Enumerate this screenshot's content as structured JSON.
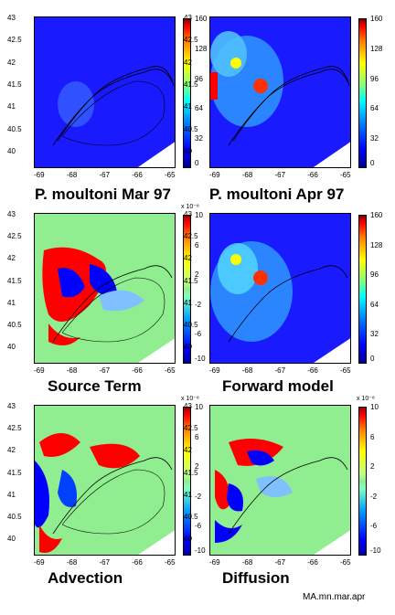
{
  "panels": [
    {
      "id": "p1",
      "title": "P. moultoni  Mar 97",
      "colorbar": "sequential",
      "colorbar_ticks": [
        "160",
        "128",
        "96",
        "64",
        "32",
        "0"
      ],
      "exponent": ""
    },
    {
      "id": "p2",
      "title": "P. moultoni  Apr 97",
      "colorbar": "sequential",
      "colorbar_ticks": [
        "160",
        "128",
        "96",
        "64",
        "32",
        "0"
      ],
      "exponent": ""
    },
    {
      "id": "p3",
      "title": "Source Term",
      "colorbar": "diverging",
      "colorbar_ticks": [
        "10",
        "6",
        "2",
        "-2",
        "-6",
        "-10"
      ],
      "exponent": "x 10⁻⁸"
    },
    {
      "id": "p4",
      "title": "Forward model",
      "colorbar": "sequential",
      "colorbar_ticks": [
        "160",
        "128",
        "96",
        "64",
        "32",
        "0"
      ],
      "exponent": ""
    },
    {
      "id": "p5",
      "title": "Advection",
      "colorbar": "diverging",
      "colorbar_ticks": [
        "10",
        "6",
        "2",
        "-2",
        "-6",
        "-10"
      ],
      "exponent": "x 10⁻⁸"
    },
    {
      "id": "p6",
      "title": "Diffusion",
      "colorbar": "diverging",
      "colorbar_ticks": [
        "10",
        "6",
        "2",
        "-2",
        "-6",
        "-10"
      ],
      "exponent": "x 10⁻⁸"
    }
  ],
  "x_ticks": [
    "-69",
    "-68",
    "-67",
    "-66",
    "-65"
  ],
  "y_ticks": [
    "43",
    "42.5",
    "42",
    "41.5",
    "41",
    "40.5",
    "40"
  ],
  "footer": "MA.mn.mar.apr",
  "colors": {
    "sequential_low": "#0000ff",
    "sequential_high": "#800000",
    "diverging_zero": "#90ee90",
    "positive": "#ff0000",
    "negative": "#0000ff"
  }
}
